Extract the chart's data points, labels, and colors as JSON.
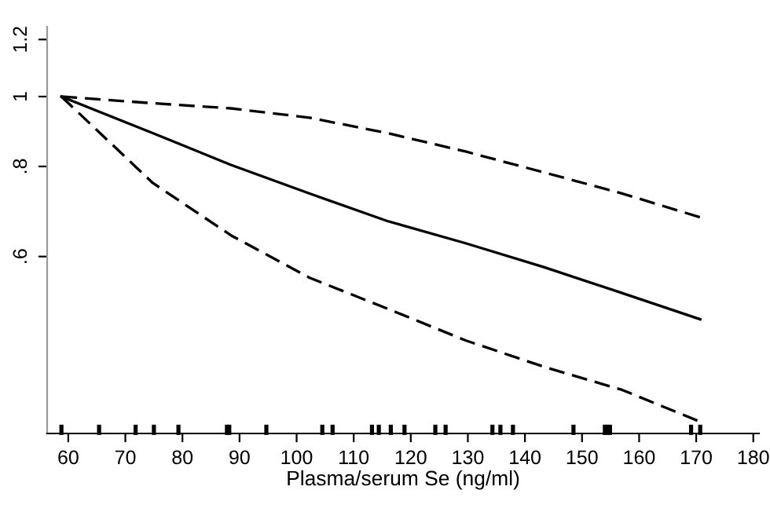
{
  "chart_data": {
    "type": "line",
    "xlabel": "Plasma/serum Se (ng/ml)",
    "log": "y",
    "xlim": [
      56.3,
      181
    ],
    "ylim": [
      0.341,
      1.25
    ],
    "xticks": [
      60,
      70,
      80,
      90,
      100,
      110,
      120,
      130,
      140,
      150,
      160,
      170,
      180
    ],
    "yticks": [
      {
        "value": 0.6,
        "label": ".6"
      },
      {
        "value": 0.8,
        "label": ".8"
      },
      1,
      1.2
    ],
    "grid": false,
    "legend": false,
    "series": [
      {
        "color": "#000000",
        "line_style": "solid",
        "x": [
          58.8,
          74.8,
          88.5,
          102.2,
          115.9,
          129.6,
          143.3,
          157.0,
          170.7
        ],
        "values": [
          1,
          0.89,
          0.804,
          0.734,
          0.672,
          0.626,
          0.58,
          0.534,
          0.491
        ]
      },
      {
        "color": "#000000",
        "line_style": "dashed",
        "x": [
          58.8,
          74.8,
          88.5,
          102.2,
          115.9,
          129.6,
          143.3,
          157.0,
          170.7
        ],
        "values": [
          1,
          0.979,
          0.963,
          0.935,
          0.89,
          0.839,
          0.785,
          0.734,
          0.68
        ]
      },
      {
        "color": "#000000",
        "line_style": "dashed",
        "x": [
          58.8,
          74.8,
          88.5,
          102.2,
          115.9,
          129.6,
          143.3,
          157.0,
          170.7
        ],
        "values": [
          1,
          0.759,
          0.642,
          0.561,
          0.508,
          0.459,
          0.422,
          0.392,
          0.354
        ]
      },
      {
        "type": "scatter",
        "color": "#000000",
        "x": [
          58.8,
          65.4,
          71.8,
          75.0,
          79.3,
          87.8,
          88.2,
          94.7,
          104.5,
          106.3,
          113.2,
          114.4,
          116.5,
          118.9,
          124.3,
          126.1,
          134.3,
          135.7,
          137.9,
          148.5,
          154.0,
          154.4,
          154.9,
          169.1,
          170.7
        ],
        "values": [
          0.345,
          0.345,
          0.345,
          0.345,
          0.345,
          0.345,
          0.345,
          0.345,
          0.345,
          0.345,
          0.345,
          0.345,
          0.345,
          0.345,
          0.345,
          0.345,
          0.345,
          0.345,
          0.345,
          0.345,
          0.345,
          0.345,
          0.345,
          0.345,
          0.345
        ]
      }
    ]
  }
}
